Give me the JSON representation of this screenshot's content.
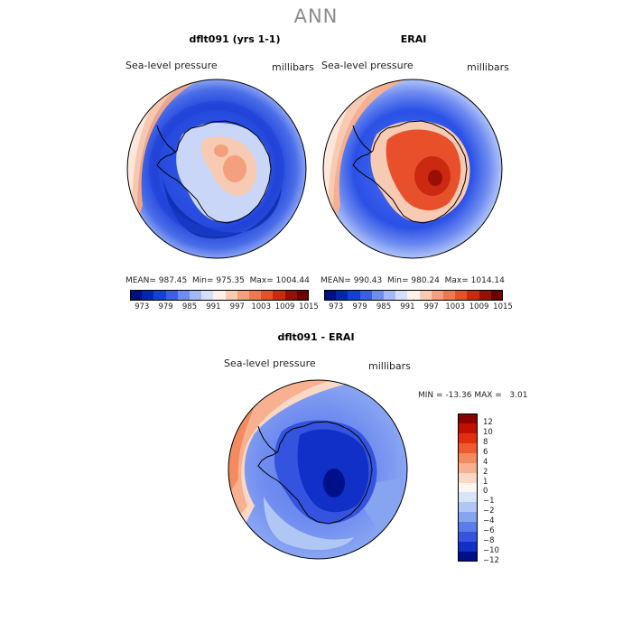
{
  "page": {
    "title": "ANN"
  },
  "chart_data": [
    {
      "type": "heatmap",
      "title": "dflt091 (yrs 1-1)",
      "left_label": "Sea-level pressure",
      "right_label": "millibars",
      "stats": {
        "mean_label": "MEAN=",
        "mean": "987.45",
        "min_label": "Min=",
        "min": "975.35",
        "max_label": "Max=",
        "max": "1004.44"
      },
      "colorbar": {
        "ticks": [
          "973",
          "979",
          "985",
          "991",
          "997",
          "1003",
          "1009",
          "1015"
        ],
        "colors": [
          "#000f80",
          "#0026b3",
          "#1440d9",
          "#3a5fe6",
          "#6f8cf0",
          "#a3b8f7",
          "#d4dff9",
          "#fff0e8",
          "#f7cbb3",
          "#f4a07e",
          "#f07850",
          "#e8502c",
          "#cc2a10",
          "#990f05",
          "#6e0000"
        ]
      },
      "projection": "south polar stereographic",
      "colors": {
        "ocean_outer": "#1d45e0",
        "inner_ring": "#5a7cf0",
        "pacific_high": "#f2a88a",
        "continent_high": "#f7c7b0"
      }
    },
    {
      "type": "heatmap",
      "title": "ERAI",
      "left_label": "Sea-level pressure",
      "right_label": "millibars",
      "stats": {
        "mean_label": "MEAN=",
        "mean": "990.43",
        "min_label": "Min=",
        "min": "980.24",
        "max_label": "Max=",
        "max": "1014.14"
      },
      "colorbar": {
        "ticks": [
          "973",
          "979",
          "985",
          "991",
          "997",
          "1003",
          "1009",
          "1015"
        ],
        "colors": [
          "#000f80",
          "#0026b3",
          "#1440d9",
          "#3a5fe6",
          "#6f8cf0",
          "#a3b8f7",
          "#d4dff9",
          "#fff0e8",
          "#f7cbb3",
          "#f4a07e",
          "#f07850",
          "#e8502c",
          "#cc2a10",
          "#990f05",
          "#6e0000"
        ]
      },
      "projection": "south polar stereographic",
      "colors": {
        "ocean_outer": "#2a55e8",
        "inner_ring": "#6f8cf0",
        "pacific_high": "#f4b090",
        "continent_high": "#e8502c"
      }
    },
    {
      "type": "heatmap",
      "title": "dflt091 - ERAI",
      "left_label": "Sea-level pressure",
      "right_label": "millibars",
      "stats_text": {
        "min_label": "MIN =",
        "min": "-13.36",
        "max_label": "MAX =",
        "max": "3.01"
      },
      "colorbar": {
        "ticks": [
          "12",
          "10",
          "8",
          "6",
          "4",
          "2",
          "1",
          "0",
          "−1",
          "−2",
          "−4",
          "−6",
          "−8",
          "−10",
          "−12"
        ],
        "colors": [
          "#8a0000",
          "#c01000",
          "#e03010",
          "#f05a30",
          "#f48a60",
          "#f7b090",
          "#fad8c5",
          "#fdf5f0",
          "#d8e4fa",
          "#b0c6f5",
          "#86a4f0",
          "#5a7ce8",
          "#3454e0",
          "#1030c8",
          "#00108a"
        ]
      },
      "projection": "south polar stereographic",
      "colors": {
        "ocean": "#7f9df0",
        "pacific_pos": "#f4b090",
        "continent_neg": "#1a3adc"
      }
    }
  ]
}
